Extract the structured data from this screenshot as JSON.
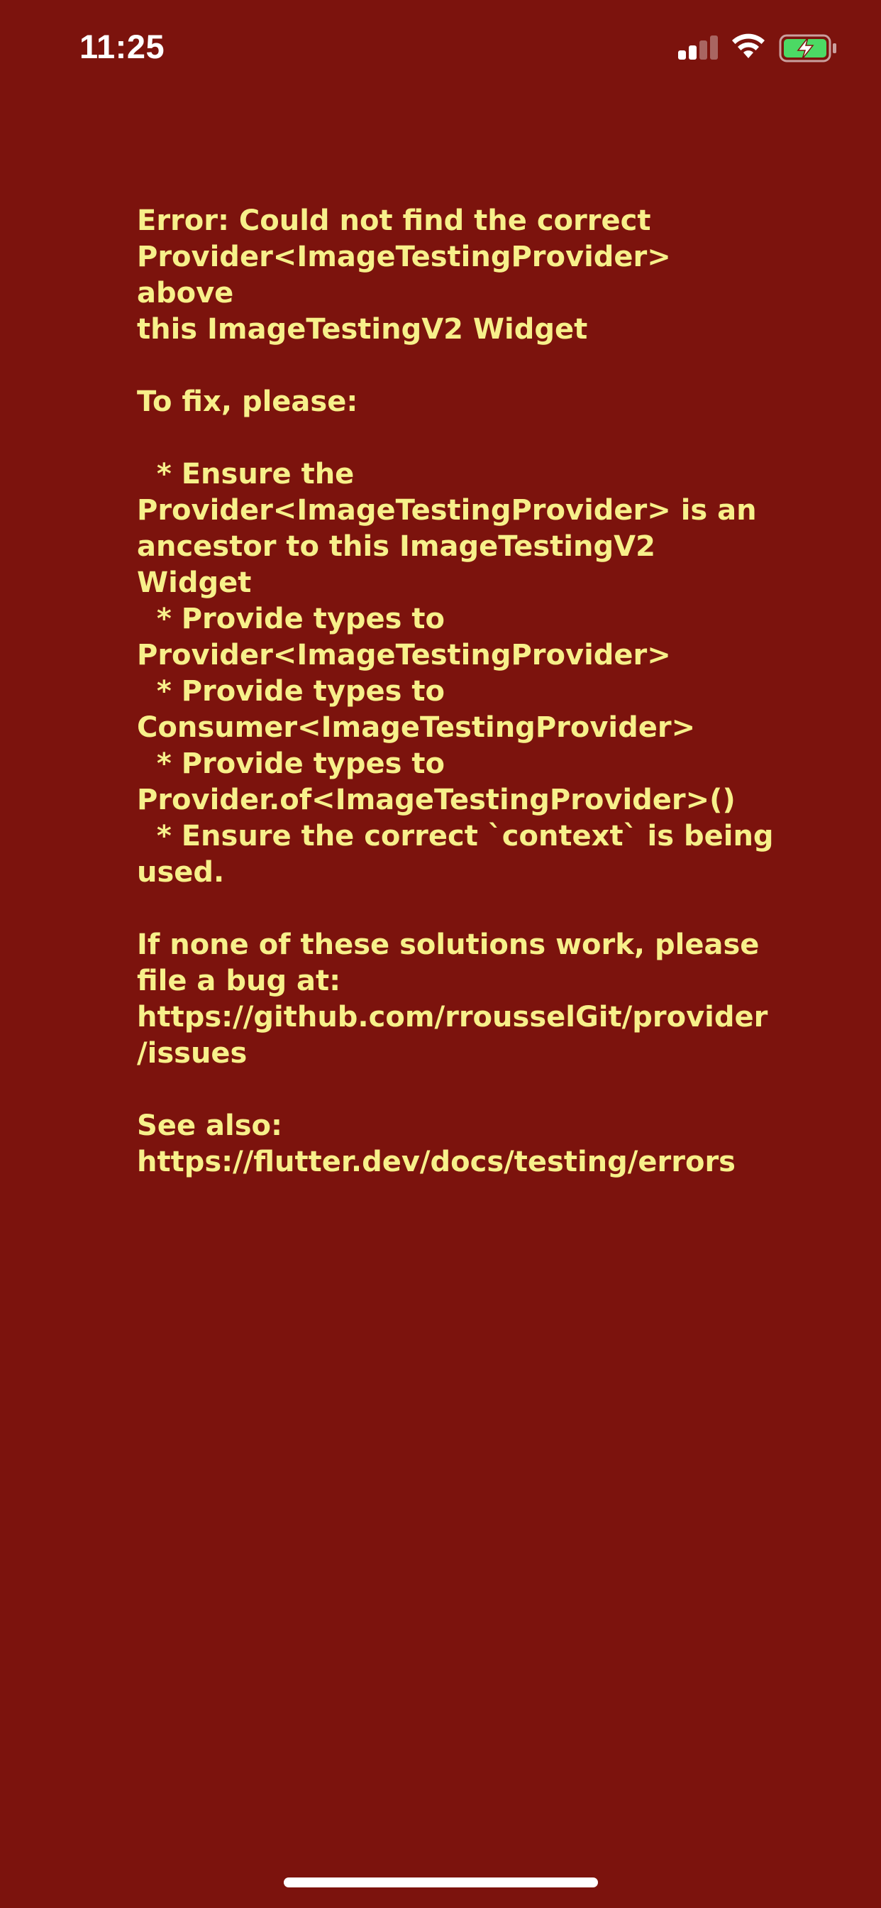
{
  "status_bar": {
    "time": "11:25",
    "signal_icon": "cellular-signal-icon",
    "wifi_icon": "wifi-icon",
    "battery_icon": "battery-charging-icon",
    "battery_fill_color": "#4cd964",
    "signal_bars_active": 2,
    "signal_bars_total": 4
  },
  "error": {
    "background_color": "#7c130d",
    "text_color": "#f7f08a",
    "lines": [
      "Error: Could not find the correct",
      "Provider<ImageTestingProvider> above",
      "this ImageTestingV2 Widget",
      "",
      "To fix, please:",
      "",
      "  * Ensure the",
      "Provider<ImageTestingProvider> is an",
      "ancestor to this ImageTestingV2 Widget",
      "  * Provide types to",
      "Provider<ImageTestingProvider>",
      "  * Provide types to",
      "Consumer<ImageTestingProvider>",
      "  * Provide types to",
      "Provider.of<ImageTestingProvider>()",
      "  * Ensure the correct `context` is being",
      "used.",
      "",
      "If none of these solutions work, please",
      "file a bug at:",
      "https://github.com/rrousselGit/provider",
      "/issues",
      "",
      "See also:",
      "https://flutter.dev/docs/testing/errors"
    ]
  }
}
